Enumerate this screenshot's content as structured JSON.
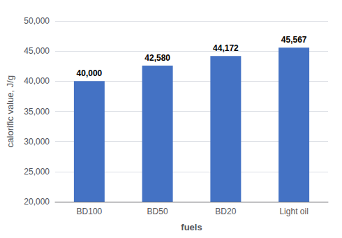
{
  "chart_data": {
    "type": "bar",
    "categories": [
      "BD100",
      "BD50",
      "BD20",
      "Light oil"
    ],
    "values": [
      40000,
      42580,
      44172,
      45567
    ],
    "value_labels": [
      "40,000",
      "42,580",
      "44,172",
      "45,567"
    ],
    "data_labels": true,
    "color": "#4472C4",
    "xlabel": "fuels",
    "ylabel": "calorific value, J/g",
    "ylim": [
      20000,
      50000
    ],
    "yticks": [
      {
        "value": 20000,
        "label": "20,000"
      },
      {
        "value": 25000,
        "label": "25,000"
      },
      {
        "value": 30000,
        "label": "30,000"
      },
      {
        "value": 35000,
        "label": "35,000"
      },
      {
        "value": 40000,
        "label": "40,000"
      },
      {
        "value": 45000,
        "label": "45,000"
      },
      {
        "value": 50000,
        "label": "50,000"
      }
    ],
    "grid": true
  }
}
